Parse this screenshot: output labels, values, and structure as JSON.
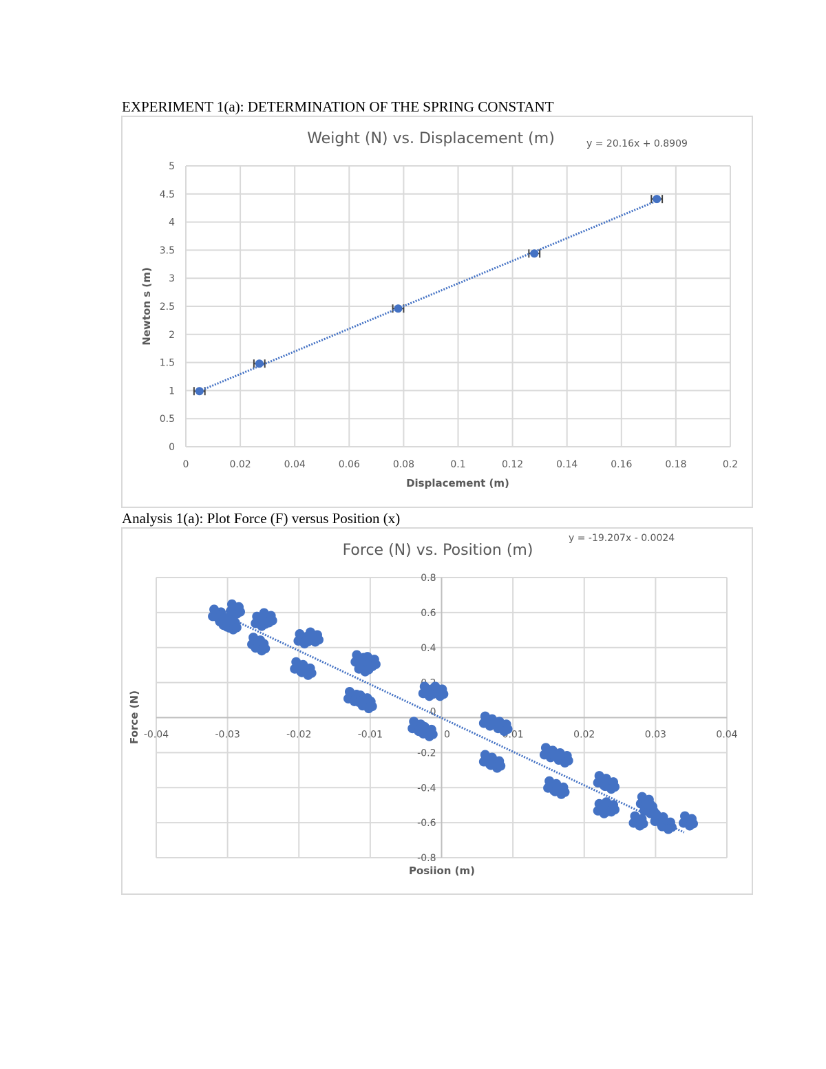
{
  "document": {
    "heading1": "EXPERIMENT 1(a): DETERMINATION OF THE SPRING CONSTANT",
    "heading2": "Analysis 1(a): Plot Force (F) versus Position (x)"
  },
  "colors": {
    "series": "#4472c4",
    "grid": "#d9d9d9",
    "text": "#595959",
    "error_bar": "#404040"
  },
  "chart_data": [
    {
      "type": "scatter",
      "title": "Weight (N) vs. Displacement (m)",
      "trendline_label": "y = 20.16x + 0.8909",
      "trendline": {
        "slope": 20.16,
        "intercept": 0.8909,
        "style": "dotted",
        "x_range": [
          0.005,
          0.173
        ]
      },
      "xlabel": "Displacement (m)",
      "ylabel": "Newton s (m)",
      "xlim": [
        0,
        0.2
      ],
      "ylim": [
        0,
        5
      ],
      "xticks": [
        "0",
        "0.02",
        "0.04",
        "0.06",
        "0.08",
        "0.1",
        "0.12",
        "0.14",
        "0.16",
        "0.18",
        "0.2"
      ],
      "yticks": [
        "0",
        "0.5",
        "1",
        "1.5",
        "2",
        "2.5",
        "3",
        "3.5",
        "4",
        "4.5",
        "5"
      ],
      "grid": true,
      "error_bars": {
        "direction": "x",
        "value": 0.002
      },
      "x": [
        0.005,
        0.027,
        0.078,
        0.128,
        0.173
      ],
      "y": [
        0.99,
        1.48,
        2.46,
        3.44,
        4.41
      ]
    },
    {
      "type": "scatter",
      "title": "Force (N) vs. Position (m)",
      "trendline_label": "y = -19.207x - 0.0024",
      "trendline": {
        "slope": -19.207,
        "intercept": -0.0024,
        "style": "dotted",
        "x_range": [
          -0.03,
          0.034
        ]
      },
      "xlabel": "Posiion (m)",
      "ylabel": "Force (N)",
      "xlim": [
        -0.04,
        0.04
      ],
      "ylim": [
        -0.8,
        0.8
      ],
      "xticks": [
        "-0.04",
        "-0.03",
        "-0.02",
        "-0.01",
        "0",
        "0.01",
        "0.02",
        "0.03",
        "0.04"
      ],
      "yticks": [
        "-0.8",
        "-0.6",
        "-0.4",
        "-0.2",
        "0",
        "0.2",
        "0.4",
        "0.6",
        "0.8"
      ],
      "grid": true,
      "x": [
        -0.0315,
        -0.0305,
        -0.03,
        -0.029,
        -0.0295,
        -0.0255,
        -0.0245,
        -0.026,
        -0.0255,
        -0.0195,
        -0.018,
        -0.02,
        -0.019,
        -0.0115,
        -0.01,
        -0.011,
        -0.0125,
        -0.011,
        -0.0105,
        -0.002,
        -0.0005,
        -0.0035,
        -0.002,
        0.0065,
        0.0085,
        0.0065,
        0.0075,
        0.015,
        0.017,
        0.0155,
        0.0165,
        0.0225,
        0.0235,
        0.0225,
        0.0235,
        0.0285,
        0.029,
        0.0275,
        0.0305,
        0.0315,
        0.0345
      ],
      "y": [
        0.59,
        0.56,
        0.54,
        0.62,
        0.53,
        0.55,
        0.57,
        0.43,
        0.41,
        0.45,
        0.46,
        0.29,
        0.27,
        0.33,
        0.32,
        0.29,
        0.12,
        0.1,
        0.08,
        0.15,
        0.15,
        -0.05,
        -0.08,
        -0.02,
        -0.05,
        -0.24,
        -0.26,
        -0.2,
        -0.23,
        -0.39,
        -0.41,
        -0.36,
        -0.38,
        -0.52,
        -0.51,
        -0.48,
        -0.52,
        -0.59,
        -0.58,
        -0.61,
        -0.59
      ]
    }
  ]
}
